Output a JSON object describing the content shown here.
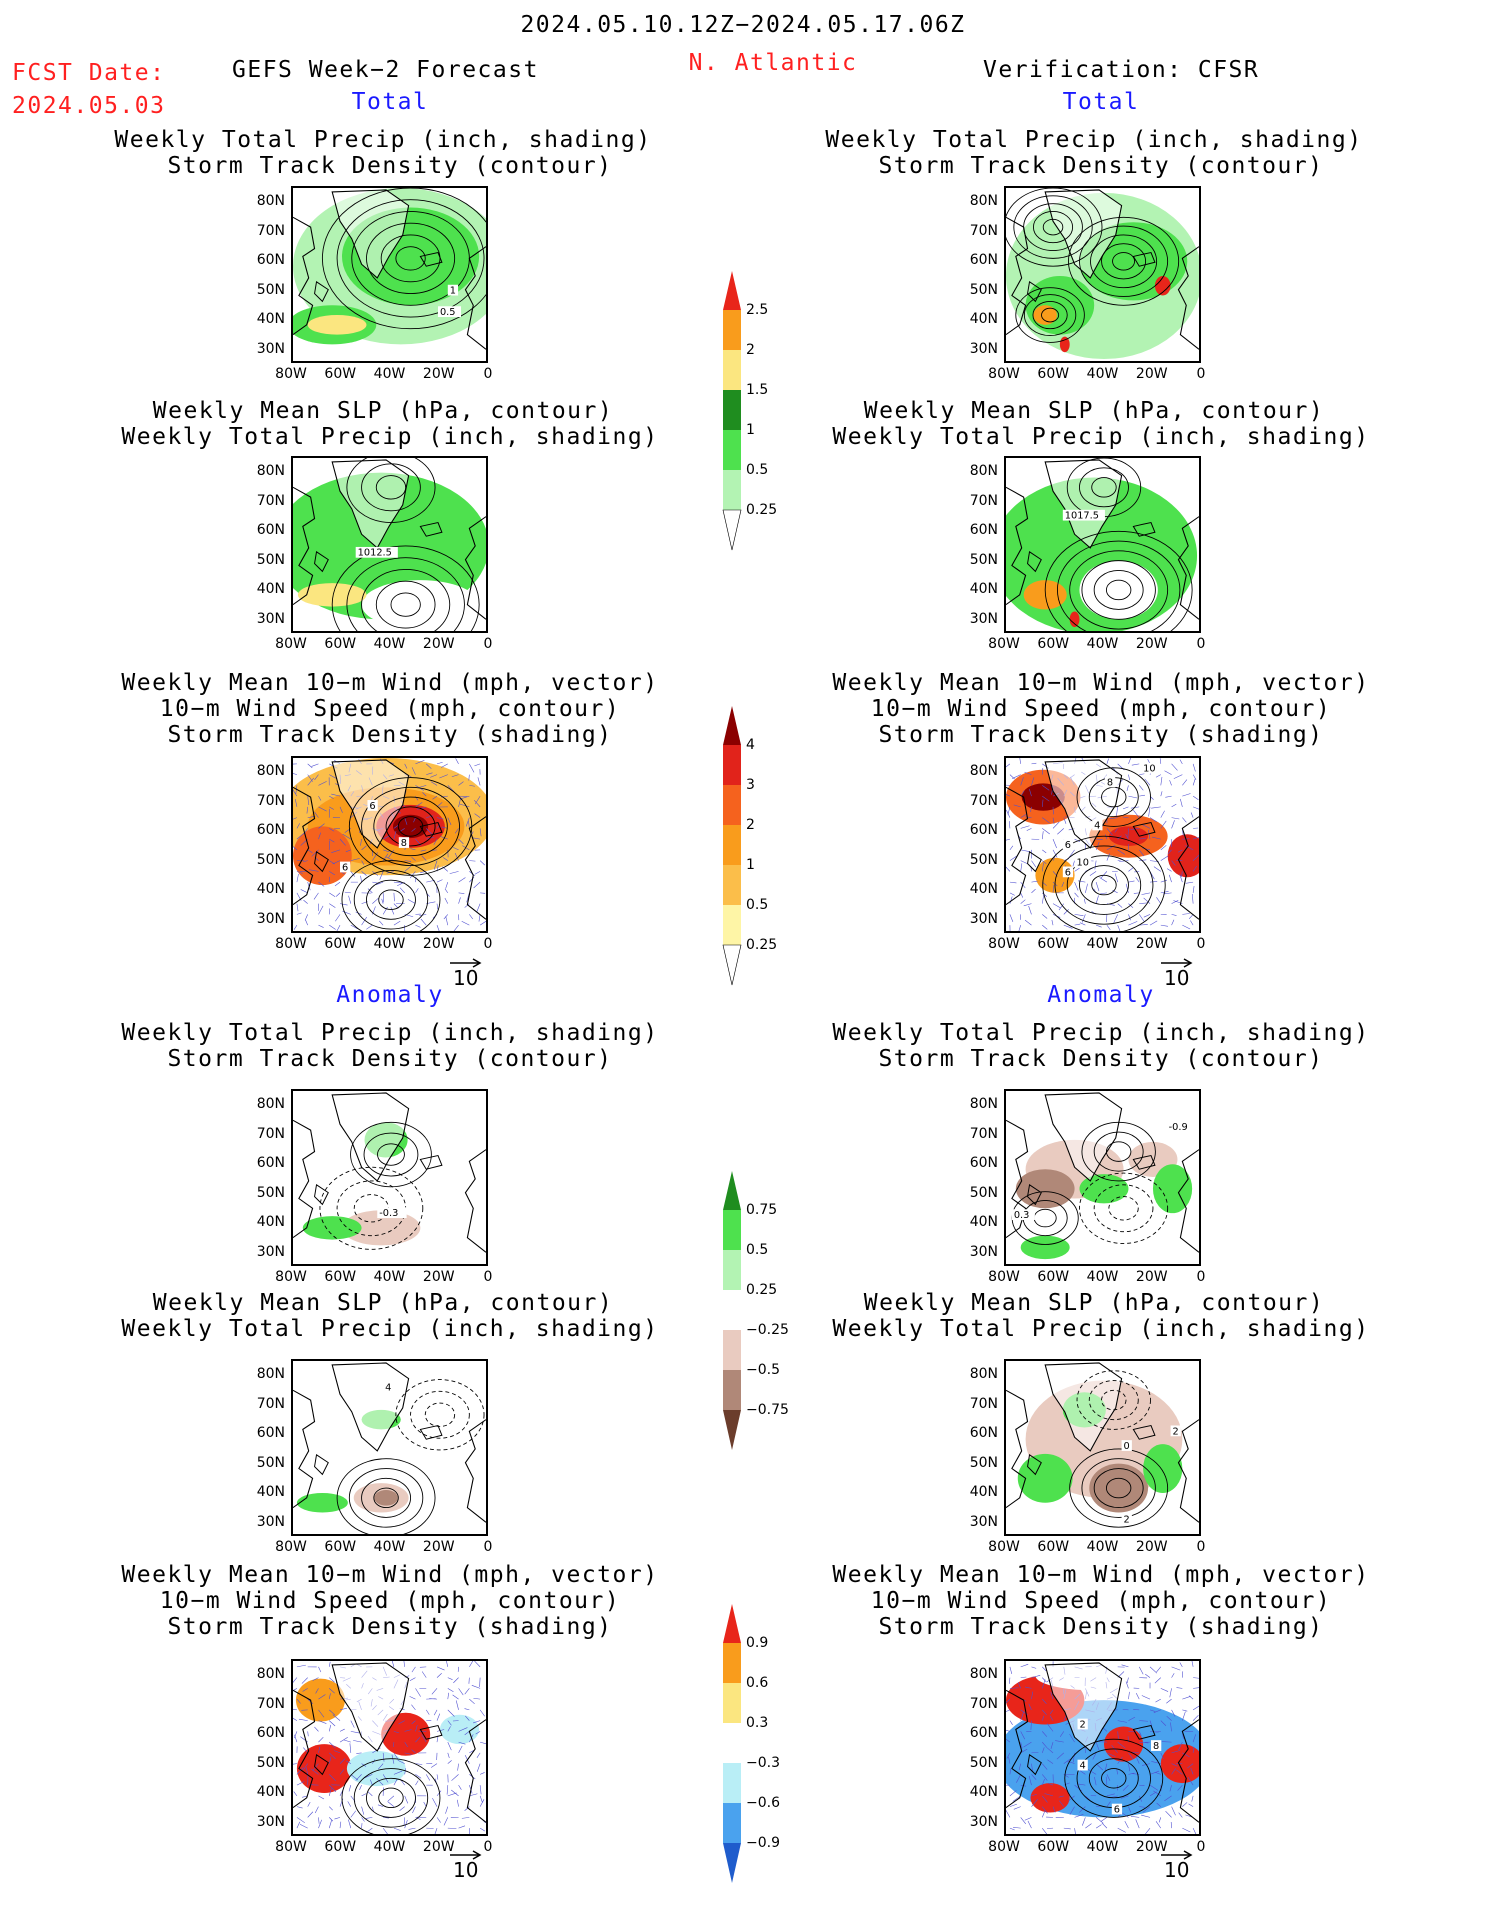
{
  "header": {
    "date_range": "2024.05.10.12Z−2024.05.17.06Z",
    "fcst_label": "FCST Date:",
    "fcst_date": "2024.05.03",
    "forecast_title": "GEFS Week−2 Forecast",
    "region": "N. Atlantic",
    "verification": "Verification: CFSR"
  },
  "sections": {
    "total_left": "Total",
    "total_right": "Total",
    "anomaly_left": "Anomaly",
    "anomaly_right": "Anomaly"
  },
  "panel_titles": {
    "precip_track": [
      "Weekly Total Precip (inch, shading)",
      "Storm Track Density (contour)"
    ],
    "slp_precip": [
      "Weekly Mean SLP (hPa, contour)",
      "Weekly Total Precip (inch, shading)"
    ],
    "wind_track": [
      "Weekly Mean 10−m Wind (mph, vector)",
      "10−m Wind Speed (mph, contour)",
      "Storm Track Density (shading)"
    ]
  },
  "axes": {
    "lat_labels": [
      "80N",
      "70N",
      "60N",
      "50N",
      "40N",
      "30N"
    ],
    "lon_labels": [
      "80W",
      "60W",
      "40W",
      "20W",
      "0"
    ]
  },
  "contour_labels": {
    "left_precip_total": [
      "1",
      "0.5"
    ],
    "left_slp_total": [
      "1012.5"
    ],
    "right_slp_total": [
      "1017.5"
    ],
    "left_wind_total": [
      "6",
      "8",
      "6"
    ],
    "right_wind_total": [
      "8",
      "10",
      "6",
      "6",
      "10",
      "4"
    ],
    "left_precip_anom": [
      "-0.3"
    ],
    "right_precip_anom": [
      "-0.9",
      "0.3"
    ],
    "left_slp_anom": [
      "4"
    ],
    "right_slp_anom": [
      "2",
      "0",
      "2"
    ],
    "right_wind_anom": [
      "2",
      "8",
      "4",
      "6"
    ]
  },
  "reference_vector": "10",
  "colorbars": {
    "precip_total": {
      "labels": [
        "2.5",
        "2",
        "1.5",
        "1",
        "0.5",
        "0.25"
      ],
      "colors": [
        "#e8251a",
        "#f99c1c",
        "#fbe680",
        "#1f8d1f",
        "#4ee14e",
        "#b3f3b3"
      ]
    },
    "storm_total": {
      "labels": [
        "4",
        "3",
        "2",
        "1",
        "0.5",
        "0.25"
      ],
      "colors": [
        "#8b0000",
        "#e1231b",
        "#f5621e",
        "#f99c1c",
        "#fbbe4a",
        "#fef5a6"
      ]
    },
    "precip_anom": {
      "labels": [
        "0.75",
        "0.5",
        "0.25",
        "−0.25",
        "−0.5",
        "−0.75"
      ],
      "colors": [
        "#1f8d1f",
        "#4ee14e",
        "#b3f3b3",
        "#ffffff",
        "#e9cbc0",
        "#b08878",
        "#6b3d2c"
      ]
    },
    "storm_anom": {
      "labels": [
        "0.9",
        "0.6",
        "0.3",
        "−0.3",
        "−0.6",
        "−0.9"
      ],
      "colors": [
        "#e8251a",
        "#f99c1c",
        "#fbe680",
        "#ffffff",
        "#b9eef6",
        "#4aa2ee",
        "#1f5ccc"
      ]
    }
  },
  "colors": {
    "accent_red": "#ff2020",
    "accent_blue": "#1a1aff"
  }
}
